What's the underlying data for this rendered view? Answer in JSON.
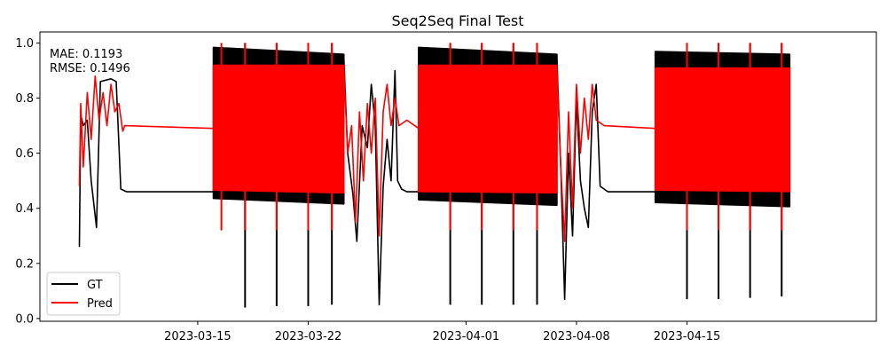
{
  "chart_data": {
    "type": "line",
    "title": "Seq2Seq Final Test",
    "xlabel": "",
    "ylabel": "",
    "x_ticks": [
      "2023-03-15",
      "2023-03-22",
      "2023-04-01",
      "2023-04-08",
      "2023-04-15"
    ],
    "y_ticks": [
      "0.0",
      "0.2",
      "0.4",
      "0.6",
      "0.8",
      "1.0"
    ],
    "xlim": [
      "2023-03-05",
      "2023-04-27"
    ],
    "ylim": [
      -0.01,
      1.04
    ],
    "grid": false,
    "legend_position": "lower-left",
    "annotation": {
      "mae_label": "MAE: 0.1193",
      "rmse_label": "RMSE: 0.1496"
    },
    "colors": {
      "GT": "#000000",
      "Pred": "#ff0000"
    },
    "series": [
      {
        "name": "GT",
        "color": "#000000",
        "segments": [
          {
            "kind": "line",
            "points": [
              [
                "2023-03-07T12:00",
                0.26
              ],
              [
                "2023-03-07T14:00",
                0.74
              ],
              [
                "2023-03-07T18:00",
                0.7
              ],
              [
                "2023-03-08T00:00",
                0.72
              ],
              [
                "2023-03-08T06:00",
                0.5
              ],
              [
                "2023-03-08T14:00",
                0.33
              ],
              [
                "2023-03-08T20:00",
                0.86
              ],
              [
                "2023-03-09T12:00",
                0.87
              ],
              [
                "2023-03-09T20:00",
                0.86
              ],
              [
                "2023-03-10T03:00",
                0.47
              ],
              [
                "2023-03-10T12:00",
                0.46
              ],
              [
                "2023-03-16T00:00",
                0.46
              ]
            ]
          },
          {
            "kind": "band",
            "start": "2023-03-16T00:00",
            "end": "2023-03-24T06:00",
            "top": [
              0.985,
              0.96
            ],
            "bottom": [
              0.435,
              0.415
            ]
          },
          {
            "kind": "spikes",
            "dates": [
              "2023-03-18T00:00",
              "2023-03-20T00:00",
              "2023-03-22T00:00",
              "2023-03-23T12:00"
            ],
            "low": [
              0.04,
              0.045,
              0.045,
              0.05
            ]
          },
          {
            "kind": "line",
            "points": [
              [
                "2023-03-24T06:00",
                0.96
              ],
              [
                "2023-03-24T12:00",
                0.6
              ],
              [
                "2023-03-24T20:00",
                0.45
              ],
              [
                "2023-03-25T02:00",
                0.28
              ],
              [
                "2023-03-25T10:00",
                0.7
              ],
              [
                "2023-03-25T18:00",
                0.62
              ],
              [
                "2023-03-26T00:00",
                0.85
              ],
              [
                "2023-03-26T06:00",
                0.7
              ],
              [
                "2023-03-26T12:00",
                0.05
              ],
              [
                "2023-03-26T18:00",
                0.48
              ],
              [
                "2023-03-27T00:00",
                0.65
              ],
              [
                "2023-03-27T06:00",
                0.5
              ],
              [
                "2023-03-27T12:00",
                0.9
              ],
              [
                "2023-03-27T16:00",
                0.5
              ],
              [
                "2023-03-27T22:00",
                0.47
              ],
              [
                "2023-03-28T06:00",
                0.46
              ],
              [
                "2023-03-29T00:00",
                0.46
              ]
            ]
          },
          {
            "kind": "band",
            "start": "2023-03-29T00:00",
            "end": "2023-04-06T18:00",
            "top": [
              0.985,
              0.96
            ],
            "bottom": [
              0.43,
              0.41
            ]
          },
          {
            "kind": "spikes",
            "dates": [
              "2023-03-31T00:00",
              "2023-04-02T00:00",
              "2023-04-04T00:00",
              "2023-04-05T12:00"
            ],
            "low": [
              0.05,
              0.05,
              0.05,
              0.05
            ]
          },
          {
            "kind": "line",
            "points": [
              [
                "2023-04-06T18:00",
                0.96
              ],
              [
                "2023-04-07T00:00",
                0.55
              ],
              [
                "2023-04-07T06:00",
                0.07
              ],
              [
                "2023-04-07T12:00",
                0.6
              ],
              [
                "2023-04-07T18:00",
                0.3
              ],
              [
                "2023-04-08T00:00",
                0.8
              ],
              [
                "2023-04-08T06:00",
                0.5
              ],
              [
                "2023-04-08T12:00",
                0.4
              ],
              [
                "2023-04-08T18:00",
                0.33
              ],
              [
                "2023-04-09T00:00",
                0.75
              ],
              [
                "2023-04-09T06:00",
                0.85
              ],
              [
                "2023-04-09T12:00",
                0.48
              ],
              [
                "2023-04-10T00:00",
                0.46
              ],
              [
                "2023-04-13T00:00",
                0.46
              ]
            ]
          },
          {
            "kind": "band",
            "start": "2023-04-13T00:00",
            "end": "2023-04-21T12:00",
            "top": [
              0.97,
              0.96
            ],
            "bottom": [
              0.42,
              0.405
            ]
          },
          {
            "kind": "spikes",
            "dates": [
              "2023-04-15T00:00",
              "2023-04-17T00:00",
              "2023-04-19T00:00",
              "2023-04-21T00:00"
            ],
            "low": [
              0.07,
              0.07,
              0.075,
              0.08
            ]
          }
        ]
      },
      {
        "name": "Pred",
        "color": "#ff0000",
        "segments": [
          {
            "kind": "line",
            "points": [
              [
                "2023-03-07T12:00",
                0.48
              ],
              [
                "2023-03-07T14:00",
                0.78
              ],
              [
                "2023-03-07T18:00",
                0.55
              ],
              [
                "2023-03-08T00:00",
                0.82
              ],
              [
                "2023-03-08T06:00",
                0.65
              ],
              [
                "2023-03-08T12:00",
                0.88
              ],
              [
                "2023-03-08T18:00",
                0.72
              ],
              [
                "2023-03-09T00:00",
                0.82
              ],
              [
                "2023-03-09T06:00",
                0.7
              ],
              [
                "2023-03-09T12:00",
                0.85
              ],
              [
                "2023-03-09T18:00",
                0.75
              ],
              [
                "2023-03-10T00:00",
                0.78
              ],
              [
                "2023-03-10T06:00",
                0.68
              ],
              [
                "2023-03-10T09:00",
                0.7
              ],
              [
                "2023-03-16T00:00",
                0.69
              ]
            ]
          },
          {
            "kind": "band",
            "start": "2023-03-16T00:00",
            "end": "2023-03-24T06:00",
            "top": [
              0.92,
              0.92
            ],
            "bottom": [
              0.465,
              0.455
            ]
          },
          {
            "kind": "spikes",
            "dates": [
              "2023-03-16T12:00",
              "2023-03-18T00:00",
              "2023-03-20T00:00",
              "2023-03-22T00:00",
              "2023-03-23T12:00"
            ],
            "low": [
              0.32,
              0.32,
              0.32,
              0.32,
              0.32
            ]
          },
          {
            "kind": "line",
            "points": [
              [
                "2023-03-24T06:00",
                0.92
              ],
              [
                "2023-03-24T12:00",
                0.6
              ],
              [
                "2023-03-24T18:00",
                0.7
              ],
              [
                "2023-03-25T00:00",
                0.35
              ],
              [
                "2023-03-25T06:00",
                0.75
              ],
              [
                "2023-03-25T12:00",
                0.5
              ],
              [
                "2023-03-25T18:00",
                0.78
              ],
              [
                "2023-03-26T00:00",
                0.6
              ],
              [
                "2023-03-26T06:00",
                0.8
              ],
              [
                "2023-03-26T12:00",
                0.3
              ],
              [
                "2023-03-26T18:00",
                0.75
              ],
              [
                "2023-03-27T00:00",
                0.85
              ],
              [
                "2023-03-27T06:00",
                0.7
              ],
              [
                "2023-03-27T12:00",
                0.8
              ],
              [
                "2023-03-27T18:00",
                0.7
              ],
              [
                "2023-03-28T06:00",
                0.72
              ],
              [
                "2023-03-29T00:00",
                0.69
              ]
            ]
          },
          {
            "kind": "band",
            "start": "2023-03-29T00:00",
            "end": "2023-04-06T18:00",
            "top": [
              0.92,
              0.92
            ],
            "bottom": [
              0.46,
              0.455
            ]
          },
          {
            "kind": "spikes",
            "dates": [
              "2023-03-31T00:00",
              "2023-04-02T00:00",
              "2023-04-04T00:00",
              "2023-04-05T12:00"
            ],
            "low": [
              0.32,
              0.32,
              0.32,
              0.32
            ]
          },
          {
            "kind": "line",
            "points": [
              [
                "2023-04-06T18:00",
                0.92
              ],
              [
                "2023-04-07T00:00",
                0.55
              ],
              [
                "2023-04-07T06:00",
                0.28
              ],
              [
                "2023-04-07T12:00",
                0.75
              ],
              [
                "2023-04-07T18:00",
                0.4
              ],
              [
                "2023-04-08T00:00",
                0.85
              ],
              [
                "2023-04-08T06:00",
                0.6
              ],
              [
                "2023-04-08T12:00",
                0.8
              ],
              [
                "2023-04-08T18:00",
                0.65
              ],
              [
                "2023-04-09T00:00",
                0.85
              ],
              [
                "2023-04-09T06:00",
                0.72
              ],
              [
                "2023-04-09T18:00",
                0.7
              ],
              [
                "2023-04-13T00:00",
                0.69
              ]
            ]
          },
          {
            "kind": "band",
            "start": "2023-04-13T00:00",
            "end": "2023-04-21T12:00",
            "top": [
              0.91,
              0.91
            ],
            "bottom": [
              0.465,
              0.46
            ]
          },
          {
            "kind": "spikes",
            "dates": [
              "2023-04-15T00:00",
              "2023-04-17T00:00",
              "2023-04-19T00:00",
              "2023-04-21T00:00"
            ],
            "low": [
              0.32,
              0.32,
              0.32,
              0.32
            ]
          }
        ]
      }
    ]
  }
}
